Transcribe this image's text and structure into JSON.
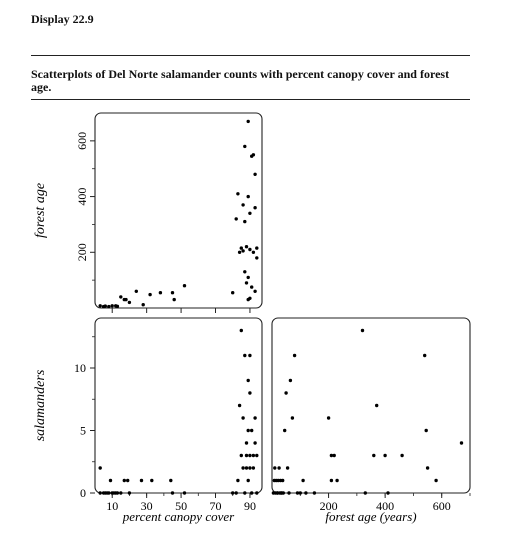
{
  "display_label": "Display 22.9",
  "caption": "Scatterplots of Del Norte salamander counts with percent canopy cover and forest age.",
  "chart_data": [
    {
      "type": "scatter",
      "xlabel": "",
      "ylabel": "forest age",
      "xlim": [
        0,
        97
      ],
      "ylim": [
        0,
        700
      ],
      "x_ticks": [
        10,
        30,
        50,
        70,
        90
      ],
      "y_ticks": [
        200,
        400,
        600
      ],
      "grid": false,
      "points": [
        [
          3,
          8
        ],
        [
          5,
          5
        ],
        [
          6,
          7
        ],
        [
          8,
          5
        ],
        [
          10,
          8
        ],
        [
          12,
          8
        ],
        [
          13,
          6
        ],
        [
          15,
          40
        ],
        [
          17,
          30
        ],
        [
          18,
          30
        ],
        [
          20,
          20
        ],
        [
          24,
          60
        ],
        [
          28,
          12
        ],
        [
          32,
          48
        ],
        [
          38,
          55
        ],
        [
          45,
          55
        ],
        [
          46,
          30
        ],
        [
          52,
          80
        ],
        [
          80,
          55
        ],
        [
          82,
          320
        ],
        [
          83,
          410
        ],
        [
          84,
          200
        ],
        [
          85,
          215
        ],
        [
          86,
          370
        ],
        [
          86,
          205
        ],
        [
          87,
          580
        ],
        [
          87,
          310
        ],
        [
          87,
          130
        ],
        [
          88,
          220
        ],
        [
          88,
          90
        ],
        [
          89,
          670
        ],
        [
          89,
          30
        ],
        [
          89,
          400
        ],
        [
          89,
          110
        ],
        [
          90,
          340
        ],
        [
          90,
          210
        ],
        [
          90,
          35
        ],
        [
          91,
          545
        ],
        [
          91,
          75
        ],
        [
          92,
          550
        ],
        [
          92,
          200
        ],
        [
          93,
          360
        ],
        [
          93,
          480
        ],
        [
          93,
          60
        ],
        [
          94,
          215
        ],
        [
          94,
          180
        ]
      ]
    },
    {
      "type": "scatter",
      "xlabel": "percent canopy cover",
      "ylabel": "salamanders",
      "xlim": [
        0,
        97
      ],
      "ylim": [
        0,
        14
      ],
      "x_ticks": [
        10,
        30,
        50,
        70,
        90
      ],
      "y_ticks": [
        0,
        5,
        10
      ],
      "grid": false,
      "points": [
        [
          3,
          2
        ],
        [
          3,
          0
        ],
        [
          5,
          0
        ],
        [
          6,
          0
        ],
        [
          7,
          0
        ],
        [
          8,
          0
        ],
        [
          9,
          1
        ],
        [
          10,
          0
        ],
        [
          11,
          0
        ],
        [
          12,
          0
        ],
        [
          13,
          0
        ],
        [
          15,
          0
        ],
        [
          17,
          1
        ],
        [
          19,
          1
        ],
        [
          20,
          0
        ],
        [
          27,
          1
        ],
        [
          33,
          1
        ],
        [
          44,
          1
        ],
        [
          45,
          0
        ],
        [
          52,
          0
        ],
        [
          80,
          0
        ],
        [
          82,
          0
        ],
        [
          83,
          1
        ],
        [
          84,
          7
        ],
        [
          85,
          3
        ],
        [
          85,
          13
        ],
        [
          86,
          2
        ],
        [
          86,
          6
        ],
        [
          87,
          11
        ],
        [
          87,
          0
        ],
        [
          88,
          4
        ],
        [
          88,
          3
        ],
        [
          88,
          2
        ],
        [
          89,
          9
        ],
        [
          89,
          5
        ],
        [
          89,
          1
        ],
        [
          90,
          11
        ],
        [
          90,
          8
        ],
        [
          90,
          3
        ],
        [
          90,
          2
        ],
        [
          91,
          0
        ],
        [
          91,
          5
        ],
        [
          92,
          3
        ],
        [
          92,
          2
        ],
        [
          93,
          6
        ],
        [
          93,
          4
        ],
        [
          94,
          3
        ],
        [
          94,
          0
        ]
      ]
    },
    {
      "type": "scatter",
      "xlabel": "forest age (years)",
      "ylabel": "",
      "xlim": [
        0,
        700
      ],
      "ylim": [
        0,
        14
      ],
      "x_ticks": [
        200,
        400,
        600
      ],
      "y_ticks": [],
      "grid": false,
      "points": [
        [
          5,
          0
        ],
        [
          8,
          1
        ],
        [
          10,
          2
        ],
        [
          12,
          0
        ],
        [
          15,
          1
        ],
        [
          18,
          0
        ],
        [
          20,
          0
        ],
        [
          22,
          1
        ],
        [
          25,
          2
        ],
        [
          28,
          0
        ],
        [
          30,
          1
        ],
        [
          32,
          0
        ],
        [
          35,
          0
        ],
        [
          38,
          1
        ],
        [
          40,
          0
        ],
        [
          45,
          5
        ],
        [
          50,
          8
        ],
        [
          55,
          2
        ],
        [
          60,
          0
        ],
        [
          65,
          9
        ],
        [
          72,
          6
        ],
        [
          80,
          11
        ],
        [
          90,
          0
        ],
        [
          100,
          0
        ],
        [
          110,
          1
        ],
        [
          120,
          0
        ],
        [
          150,
          0
        ],
        [
          200,
          6
        ],
        [
          210,
          3
        ],
        [
          210,
          1
        ],
        [
          220,
          3
        ],
        [
          230,
          1
        ],
        [
          320,
          13
        ],
        [
          330,
          0
        ],
        [
          360,
          3
        ],
        [
          370,
          7
        ],
        [
          400,
          3
        ],
        [
          410,
          0
        ],
        [
          460,
          3
        ],
        [
          540,
          11
        ],
        [
          545,
          5
        ],
        [
          550,
          2
        ],
        [
          580,
          1
        ],
        [
          670,
          4
        ]
      ]
    }
  ]
}
